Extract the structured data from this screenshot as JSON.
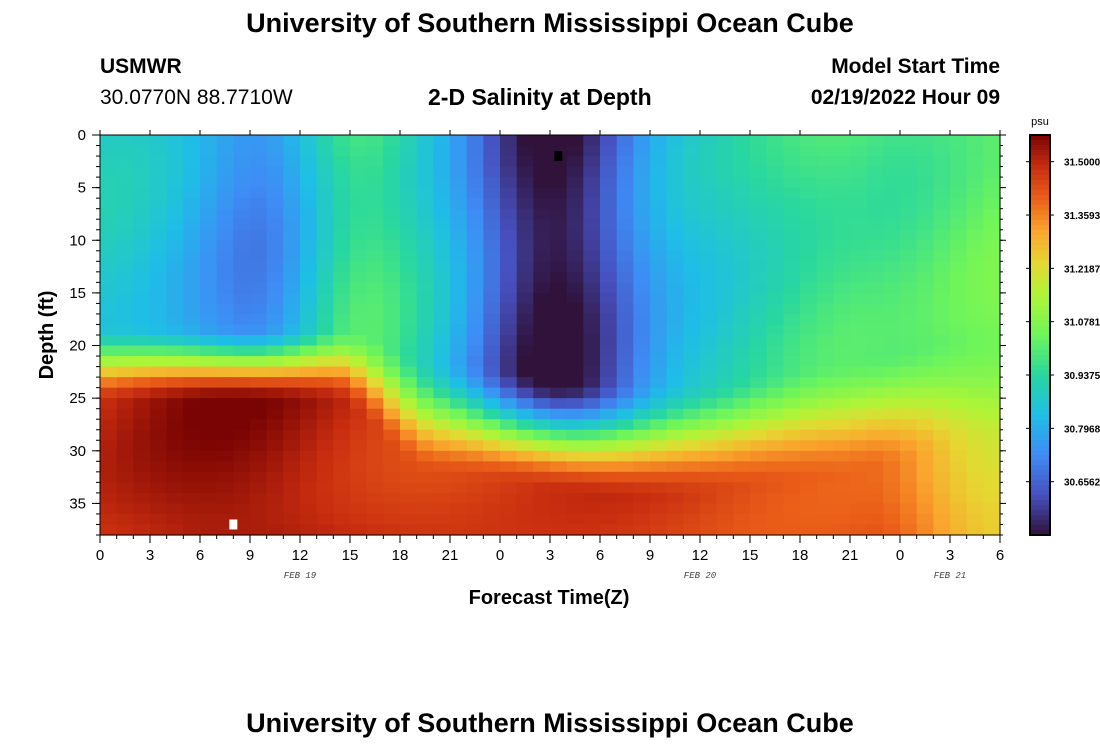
{
  "header": {
    "title": "University of Southern Mississippi Ocean Cube",
    "station_id": "USMWR",
    "coords": "30.0770N  88.7710W",
    "chart_title": "2-D Salinity at Depth",
    "model_start_label": "Model Start Time",
    "model_start_value": "02/19/2022 Hour 09"
  },
  "footer": {
    "title": "University of Southern Mississippi Ocean Cube"
  },
  "chart_data": {
    "type": "heatmap",
    "title": "2-D Salinity at Depth",
    "xlabel": "Forecast Time(Z)",
    "ylabel": "Depth (ft)",
    "x_ticks": [
      "0",
      "3",
      "6",
      "9",
      "12",
      "15",
      "18",
      "21",
      "0",
      "3",
      "6",
      "9",
      "12",
      "15",
      "18",
      "21",
      "0",
      "3",
      "6"
    ],
    "x_range_hours": [
      0,
      54
    ],
    "date_labels": [
      {
        "text": "FEB 19",
        "hour": 12
      },
      {
        "text": "FEB 20",
        "hour": 36
      },
      {
        "text": "FEB 21",
        "hour": 51
      }
    ],
    "y_ticks": [
      "0",
      "5",
      "10",
      "15",
      "20",
      "25",
      "30",
      "35"
    ],
    "y_range_ft": [
      0,
      38
    ],
    "y_inverted": true,
    "colorbar": {
      "unit": "psu",
      "tick_labels": [
        "31.5000",
        "31.3593",
        "31.2187",
        "31.0781",
        "30.9375",
        "30.7968",
        "30.6562"
      ],
      "min": 30.5156,
      "max": 31.5703
    },
    "markers": [
      {
        "hour": 27.5,
        "depth_ft": 2,
        "color": "#000000",
        "meaning": "minimum"
      },
      {
        "hour": 8,
        "depth_ft": 37,
        "color": "#ffffff",
        "meaning": "maximum"
      }
    ],
    "grid": false,
    "description": "Low salinity surface layer (about 30.7-31.0 psu) over a halocline near 20-28 ft; high salinity near-bottom water (about 31.45-31.55 psu), strongest around hours 3-12; freshest water (about 30.52 psu) near the surface around hour 27."
  }
}
